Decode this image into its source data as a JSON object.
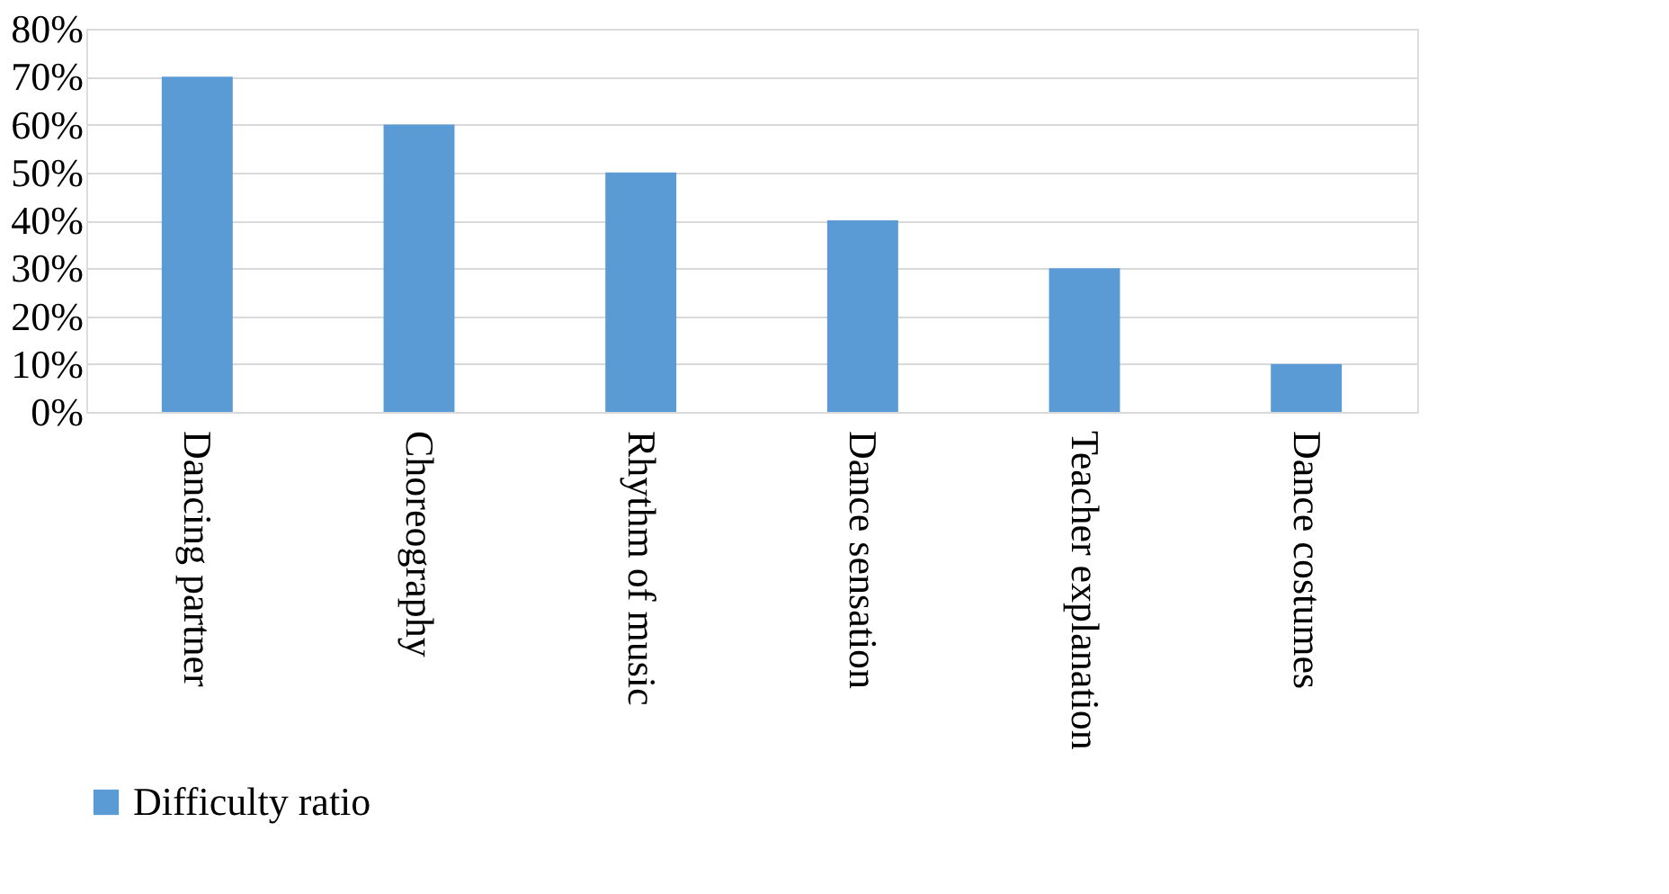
{
  "chart_data": {
    "type": "bar",
    "categories": [
      "Dancing partner",
      "Choreography",
      "Rhythm of music",
      "Dance sensation",
      "Teacher explanation",
      "Dance costumes"
    ],
    "series": [
      {
        "name": "Difficulty ratio",
        "color": "#5b9bd5",
        "values": [
          70,
          60,
          50,
          40,
          30,
          10
        ]
      }
    ],
    "ylim": [
      0,
      80
    ],
    "yticks": [
      {
        "value": 0,
        "label": "0%"
      },
      {
        "value": 10,
        "label": "10%"
      },
      {
        "value": 20,
        "label": "20%"
      },
      {
        "value": 30,
        "label": "30%"
      },
      {
        "value": 40,
        "label": "40%"
      },
      {
        "value": 50,
        "label": "50%"
      },
      {
        "value": 60,
        "label": "60%"
      },
      {
        "value": 70,
        "label": "70%"
      },
      {
        "value": 80,
        "label": "80%"
      }
    ],
    "grid": "y",
    "legend": "bottom"
  }
}
